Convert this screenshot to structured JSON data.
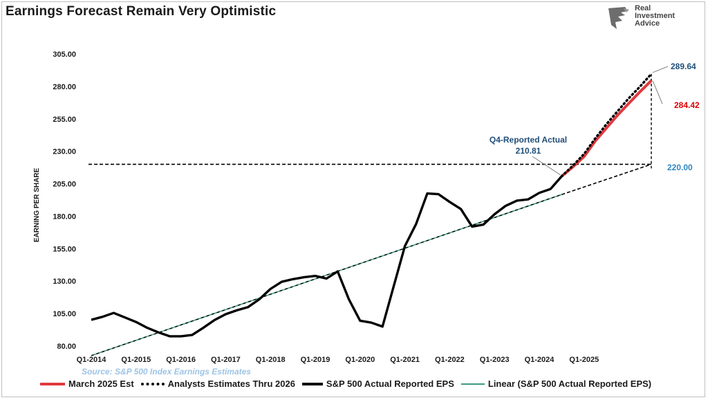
{
  "title": "Earnings Forecast Remain Very Optimistic",
  "brand": {
    "line1": "Real",
    "line2": "Investment",
    "line3": "Advice",
    "icon": "eagle-head-icon"
  },
  "source": "Source: S&P 500 Index Earnings Estimates",
  "legend": {
    "march": "March 2025 Est",
    "analysts": "Analysts Estimates Thru 2026",
    "actual": "S&P 500 Actual Reported EPS",
    "linear": "Linear (S&P 500 Actual Reported EPS)"
  },
  "colors": {
    "actual": "#000000",
    "march": "#e0393e",
    "linear": "#3f9a83",
    "ann_blue": "#1f4e79",
    "ann_red": "#e00000",
    "ann_lightblue": "#2e86c1"
  },
  "annotations": {
    "q4_label": "Q4-Reported Actual",
    "q4_value": "210.81",
    "end_analysts": "289.64",
    "end_march": "284.42",
    "trend_end": "220.00"
  },
  "chart_data": {
    "type": "line",
    "ylabel": "EARNING PER SHARE",
    "xlabel": "",
    "ylim": [
      80,
      305
    ],
    "yticks": [
      "80.00",
      "105.00",
      "130.00",
      "155.00",
      "180.00",
      "205.00",
      "230.00",
      "255.00",
      "280.00",
      "305.00"
    ],
    "xticks": [
      "Q1-2014",
      "Q1-2015",
      "Q1-2016",
      "Q1-2017",
      "Q1-2018",
      "Q1-2019",
      "Q1-2020",
      "Q1-2021",
      "Q1-2022",
      "Q1-2023",
      "Q1-2024",
      "Q1-2025"
    ],
    "series": [
      {
        "name": "S&P 500 Actual Reported EPS",
        "style": "solid-black",
        "values": [
          100.2,
          102.5,
          105.5,
          102,
          98.5,
          94,
          90.5,
          87.5,
          87.5,
          88.5,
          94,
          100,
          104.5,
          107.5,
          110,
          116,
          124,
          129.5,
          131.5,
          133,
          134,
          132,
          137.5,
          116,
          99.5,
          98,
          95,
          126,
          157,
          174,
          197.5,
          197,
          191,
          185.5,
          172,
          173.5,
          181.5,
          188,
          192,
          193,
          198,
          201,
          210.81
        ]
      },
      {
        "name": "March 2025 Est",
        "style": "solid-red",
        "values": [
          {
            "q": 42,
            "v": 210.81
          },
          {
            "q": 43,
            "v": 218
          },
          {
            "q": 44,
            "v": 226
          },
          {
            "q": 45,
            "v": 238
          },
          {
            "q": 46,
            "v": 248
          },
          {
            "q": 47,
            "v": 258
          },
          {
            "q": 48,
            "v": 267
          },
          {
            "q": 49,
            "v": 276
          },
          {
            "q": 50,
            "v": 284.42
          }
        ]
      },
      {
        "name": "Analysts Estimates Thru 2026",
        "style": "dotted-black",
        "values": [
          {
            "q": 42,
            "v": 210.81
          },
          {
            "q": 43,
            "v": 219
          },
          {
            "q": 44,
            "v": 228
          },
          {
            "q": 45,
            "v": 240
          },
          {
            "q": 46,
            "v": 251
          },
          {
            "q": 47,
            "v": 261
          },
          {
            "q": 48,
            "v": 271
          },
          {
            "q": 49,
            "v": 280
          },
          {
            "q": 50,
            "v": 289.64
          }
        ]
      },
      {
        "name": "Linear (S&P 500 Actual Reported EPS)",
        "style": "thin-green",
        "values": [
          {
            "q": 0,
            "v": 72.6
          },
          {
            "q": 42,
            "v": 196.7
          }
        ]
      }
    ],
    "trend_extension": [
      {
        "q": 42,
        "v": 196.7
      },
      {
        "q": 50,
        "v": 220.0
      }
    ],
    "reference_level": 220.0,
    "grid": false,
    "legend_position": "bottom"
  }
}
